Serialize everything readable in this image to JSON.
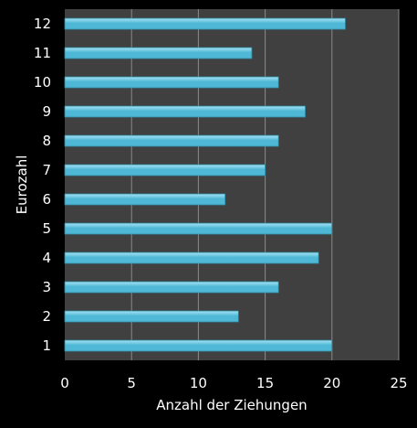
{
  "chart_data": {
    "type": "bar",
    "orientation": "horizontal",
    "categories": [
      "1",
      "2",
      "3",
      "4",
      "5",
      "6",
      "7",
      "8",
      "9",
      "10",
      "11",
      "12"
    ],
    "values": [
      20,
      13,
      16,
      19,
      20,
      12,
      15,
      16,
      18,
      16,
      14,
      21
    ],
    "xlabel": "Anzahl der Ziehungen",
    "ylabel": "Eurozahl",
    "xlim": [
      0,
      25
    ],
    "xticks": [
      "0",
      "5",
      "10",
      "15",
      "20",
      "25"
    ],
    "grid": true,
    "legend": "none",
    "colors": {
      "page_background": "#000000",
      "plot_background": "#404040",
      "bar_fill": "#4FB8D6",
      "bar_highlight": "#A8E4F4",
      "gridline": "#8A8A8A",
      "text": "#FFFFFF"
    }
  }
}
